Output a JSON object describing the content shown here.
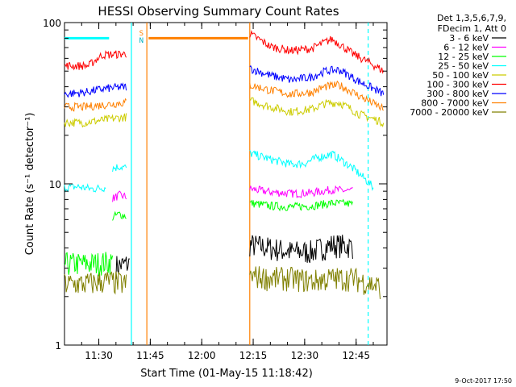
{
  "chart_data": {
    "type": "line",
    "title": "HESSI Observing Summary Count Rates",
    "xlabel": "Start Time (01-May-15 11:18:42)",
    "ylabel": "Count Rate (s⁻¹ detector⁻¹)",
    "ylim": [
      1,
      100
    ],
    "yscale": "log",
    "xlim_minutes_after_1120": [
      0,
      94
    ],
    "xticks": [
      "11:30",
      "11:45",
      "12:00",
      "12:15",
      "12:30",
      "12:45"
    ],
    "xtick_minutes_after_1120": [
      10,
      25,
      40,
      55,
      70,
      85
    ],
    "yticks": [
      "1",
      "10",
      "100"
    ],
    "yticks_values": [
      1,
      10,
      100
    ],
    "legend_header": [
      "Det 1,3,5,6,7,9,",
      "FDecim 1, Att 0"
    ],
    "legend_position": "top-right outside plot",
    "flag_labels": [
      "S",
      "N"
    ],
    "footer_date": "9-Oct-2017 17:50",
    "series": [
      {
        "name": "3 - 6 keV",
        "color": "#000000",
        "segments": [
          {
            "x": [
              15,
              19
            ],
            "y": [
              3.1,
              3.2
            ]
          },
          {
            "x": [
              54,
              60,
              66,
              72,
              78,
              84
            ],
            "y": [
              4.2,
              4.0,
              3.8,
              3.8,
              4.2,
              4.1
            ]
          }
        ]
      },
      {
        "name": "6 - 12 keV",
        "color": "#ff00ff",
        "segments": [
          {
            "x": [
              14,
              16,
              18
            ],
            "y": [
              8.1,
              8.5,
              8.3
            ]
          },
          {
            "x": [
              54,
              60,
              66,
              72,
              78,
              84
            ],
            "y": [
              9.3,
              8.9,
              8.7,
              8.8,
              9.2,
              9.0
            ]
          }
        ]
      },
      {
        "name": "12 - 25 keV",
        "color": "#00ff00",
        "segments": [
          {
            "x": [
              0,
              8,
              14
            ],
            "y": [
              3.2,
              3.2,
              3.3
            ]
          },
          {
            "x": [
              14,
              16,
              18
            ],
            "y": [
              6.2,
              6.5,
              6.3
            ]
          },
          {
            "x": [
              54,
              60,
              66,
              72,
              78,
              84
            ],
            "y": [
              7.6,
              7.3,
              7.2,
              7.3,
              7.6,
              7.5
            ]
          }
        ]
      },
      {
        "name": "25 - 50 keV",
        "color": "#00ffff",
        "segments": [
          {
            "x": [
              0,
              4,
              8,
              12
            ],
            "y": [
              9.5,
              9.6,
              9.3,
              9.5
            ]
          },
          {
            "x": [
              14,
              16,
              18
            ],
            "y": [
              12.5,
              12.8,
              12.6
            ]
          },
          {
            "x": [
              54,
              60,
              66,
              70,
              74,
              78,
              84,
              90
            ],
            "y": [
              15.5,
              14.2,
              13.2,
              13.4,
              14.6,
              15.3,
              12.5,
              9.5
            ]
          }
        ]
      },
      {
        "name": "50 - 100 keV",
        "color": "#cccc00",
        "segments": [
          {
            "x": [
              0,
              6,
              12,
              18
            ],
            "y": [
              24,
              24,
              25,
              26
            ]
          },
          {
            "x": [
              54,
              60,
              66,
              72,
              76,
              80,
              86,
              93
            ],
            "y": [
              33,
              30,
              28,
              29,
              31.5,
              32,
              27,
              24
            ]
          }
        ]
      },
      {
        "name": "100 - 300 keV",
        "color": "#ff0000",
        "segments": [
          {
            "x": [
              0,
              7,
              11,
              18
            ],
            "y": [
              54,
              54,
              63,
              64
            ]
          },
          {
            "x": [
              54,
              60,
              66,
              72,
              78,
              84,
              93
            ],
            "y": [
              85,
              71,
              67,
              69,
              79,
              64,
              50
            ]
          }
        ]
      },
      {
        "name": "300 - 800 keV",
        "color": "#0000ff",
        "segments": [
          {
            "x": [
              0,
              6,
              12,
              18
            ],
            "y": [
              36,
              37,
              39,
              40
            ]
          },
          {
            "x": [
              54,
              60,
              66,
              72,
              76,
              80,
              86,
              93
            ],
            "y": [
              52,
              47,
              44,
              46,
              50,
              51,
              43,
              36
            ]
          }
        ]
      },
      {
        "name": "800 - 7000 keV",
        "color": "#ff8000",
        "segments": [
          {
            "x": [
              0,
              6,
              12,
              18
            ],
            "y": [
              30,
              30,
              31,
              32
            ]
          },
          {
            "x": [
              24.5,
              53.5
            ],
            "y": [
              80,
              80
            ]
          },
          {
            "x": [
              54,
              60,
              66,
              72,
              76,
              80,
              86,
              93
            ],
            "y": [
              41,
              38,
              36,
              37,
              40,
              41,
              35,
              29
            ]
          }
        ]
      },
      {
        "name": "7000 - 20000 keV",
        "color": "#808000",
        "segments": [
          {
            "x": [
              0,
              6,
              12,
              18
            ],
            "y": [
              2.4,
              2.4,
              2.5,
              2.4
            ]
          },
          {
            "x": [
              54,
              60,
              66,
              72,
              78,
              84,
              92
            ],
            "y": [
              2.7,
              2.6,
              2.6,
              2.5,
              2.6,
              2.6,
              2.3
            ]
          }
        ]
      }
    ],
    "markers": [
      {
        "x": 0,
        "y": [
          80,
          80
        ],
        "color": "#00ffff",
        "style": "solid"
      },
      {
        "x": 19.5,
        "y": [
          1,
          100
        ],
        "color": "#00ffff",
        "style": "solid"
      },
      {
        "x": 88.5,
        "y": [
          1,
          100
        ],
        "color": "#00ffff",
        "style": "dashed"
      },
      {
        "x": 24,
        "y": [
          1,
          100
        ],
        "color": "#ff8000",
        "style": "solid"
      },
      {
        "x": 54,
        "y": [
          1,
          100
        ],
        "color": "#ff8000",
        "style": "solid"
      }
    ]
  }
}
